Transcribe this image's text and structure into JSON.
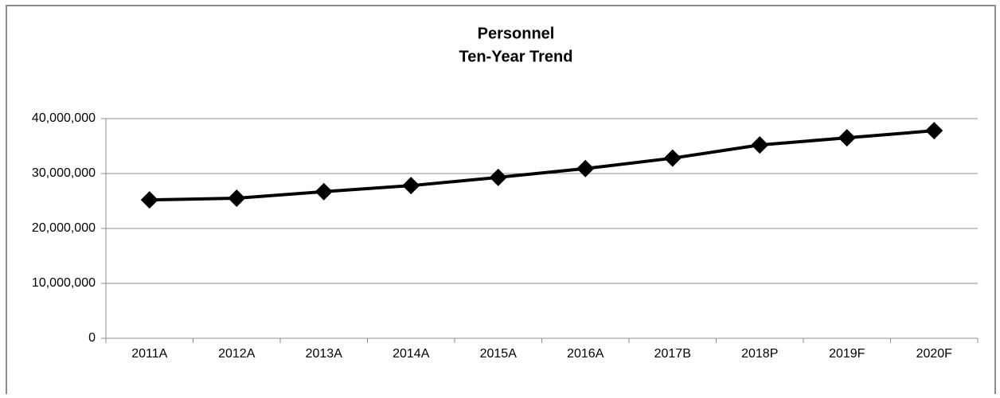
{
  "chart_data": {
    "type": "line",
    "title": [
      "Personnel",
      "Ten-Year Trend"
    ],
    "categories": [
      "2011A",
      "2012A",
      "2013A",
      "2014A",
      "2015A",
      "2016A",
      "2017B",
      "2018P",
      "2019F",
      "2020F"
    ],
    "series": [
      {
        "name": "Personnel",
        "color": "#000000",
        "values": [
          25200000,
          25500000,
          26700000,
          27800000,
          29300000,
          30900000,
          32800000,
          35200000,
          36500000,
          37800000
        ]
      }
    ],
    "ylim": [
      0,
      40000000
    ],
    "yticks": [
      0,
      {
        "value": 10000000,
        "label": "10,000,000"
      },
      {
        "value": 20000000,
        "label": "20,000,000"
      },
      {
        "value": 30000000,
        "label": "30,000,000"
      },
      {
        "value": 40000000,
        "label": "40,000,000"
      }
    ],
    "grid": true
  }
}
